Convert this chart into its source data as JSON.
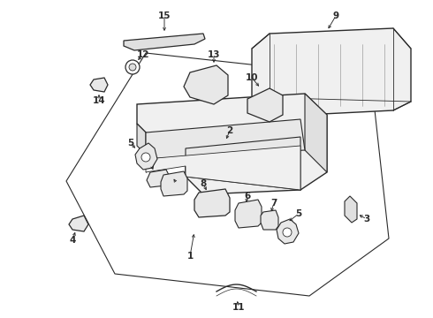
{
  "bg_color": "#ffffff",
  "line_color": "#2a2a2a",
  "fig_width": 4.9,
  "fig_height": 3.6,
  "dpi": 100,
  "label_fs": 7.5,
  "lw_main": 1.0,
  "lw_thin": 0.6
}
